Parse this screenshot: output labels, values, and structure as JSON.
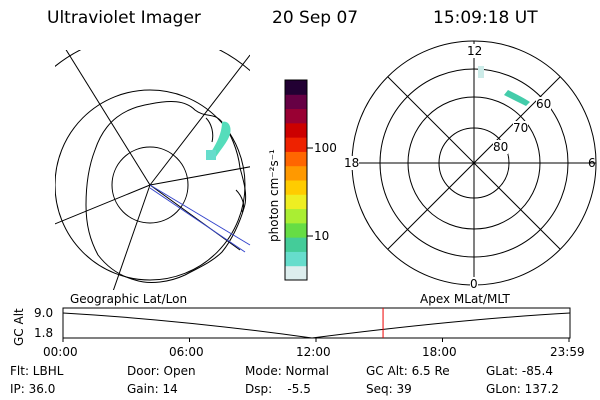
{
  "header": {
    "instrument": "Ultraviolet Imager",
    "date": "20 Sep 07",
    "time": "15:09:18 UT"
  },
  "colorbar": {
    "label": "photon cm⁻²s⁻¹",
    "ticks": [
      "100",
      "10"
    ],
    "colors": [
      "#ddeeee",
      "#66ddcc",
      "#44cc99",
      "#66dd44",
      "#aaee33",
      "#eeee22",
      "#ffcc00",
      "#ff9900",
      "#ff6600",
      "#ee2200",
      "#cc0000",
      "#990033",
      "#660044",
      "#220033"
    ]
  },
  "polar_plot": {
    "mlt_labels": {
      "top": "12",
      "left": "18",
      "right": "6",
      "bottom": "0"
    },
    "lat_labels": [
      "60",
      "70",
      "80"
    ]
  },
  "timeline": {
    "left_title": "Geographic Lat/Lon",
    "right_title": "Apex MLat/MLT",
    "y_axis_label": "GC Alt",
    "y_ticks": [
      "9.0",
      "1.8"
    ],
    "x_ticks": [
      "00:00",
      "06:00",
      "12:00",
      "18:00",
      "23:59"
    ],
    "current_marker_hour": 15.15
  },
  "info": {
    "filter": "Flt: LBHL",
    "ip": "IP: 36.0",
    "door": "Door: Open",
    "gain": "Gain: 14",
    "mode": "Mode: Normal",
    "dsp": "Dsp:    -5.5",
    "gc_alt": "GC Alt: 6.5 Re",
    "seq": "Seq: 39",
    "glat": "GLat: -85.4",
    "glon": "GLon: 137.2"
  }
}
